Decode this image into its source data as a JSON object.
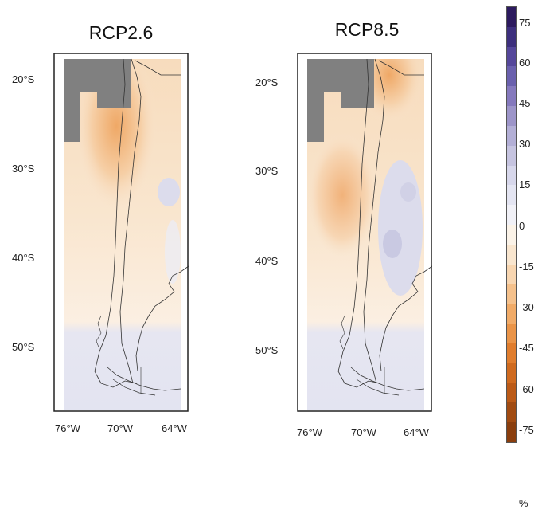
{
  "panels": [
    {
      "title": "RCP2.6"
    },
    {
      "title": "RCP8.5"
    }
  ],
  "lat_labels": [
    "20°S",
    "30°S",
    "40°S",
    "50°S"
  ],
  "lon_labels": [
    "76°W",
    "70°W",
    "64°W"
  ],
  "colorbar": {
    "ticks": [
      "75",
      "60",
      "45",
      "30",
      "15",
      "0",
      "-15",
      "-30",
      "-45",
      "-60",
      "-75"
    ],
    "unit": "%",
    "colors": [
      "#2c1a5e",
      "#3d2f7d",
      "#55479a",
      "#6a60ad",
      "#8579bd",
      "#9d95c9",
      "#b3afd6",
      "#c6c4e0",
      "#d7d7eb",
      "#e4e5f2",
      "#f1f1f7",
      "#fbf3e8",
      "#f9e6cf",
      "#f8d6b1",
      "#f5c18c",
      "#f1ab68",
      "#ea9448",
      "#e07d2e",
      "#cf6a1f",
      "#bb5a17",
      "#a14b12",
      "#8a3e0e"
    ]
  }
}
